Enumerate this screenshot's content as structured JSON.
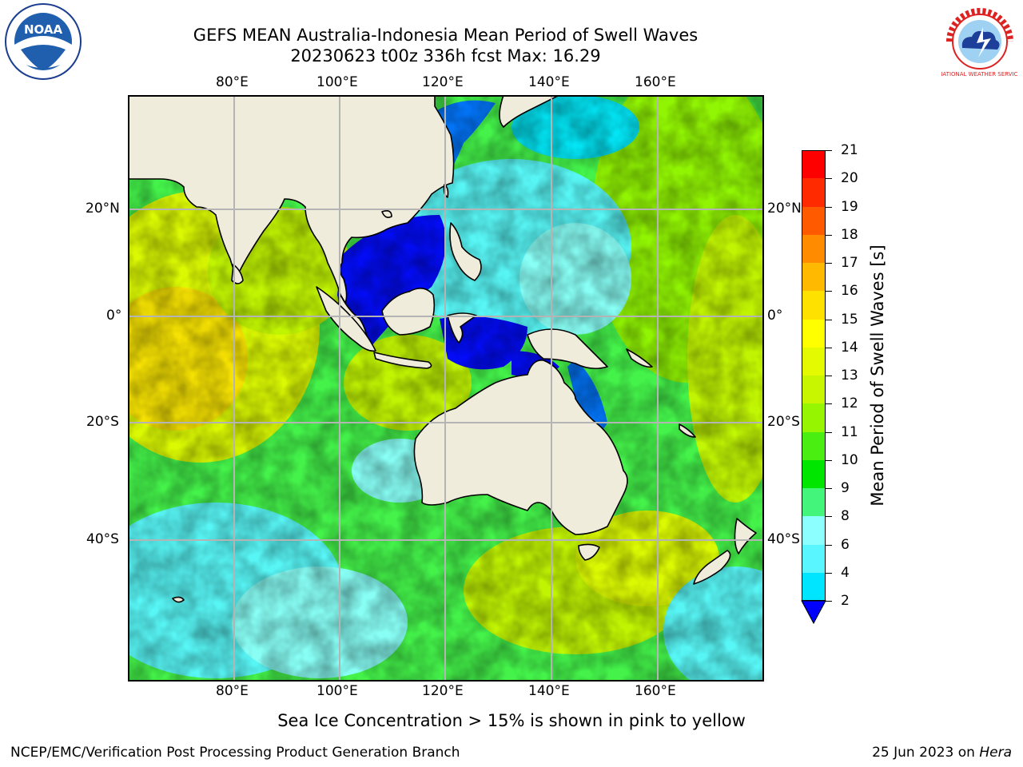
{
  "title": {
    "line1": "GEFS MEAN Australia-Indonesia Mean Period of Swell Waves",
    "line2": "20230623 t00z 336h fcst   Max: 16.29"
  },
  "logos": {
    "left_logo_text": "NOAA",
    "right_logo_text": "NATIONAL WEATHER SERVICE"
  },
  "map": {
    "lon_labels": [
      "80°E",
      "100°E",
      "120°E",
      "140°E",
      "160°E"
    ],
    "lat_labels": [
      "20°N",
      "0°",
      "20°S",
      "40°S"
    ],
    "colors": {
      "land": "#efecdc",
      "ocean_default": "#44f24a"
    }
  },
  "colorbar": {
    "title": "Mean Period of Swell Waves [s]",
    "ticks": [
      "21",
      "20",
      "19",
      "18",
      "17",
      "16",
      "15",
      "14",
      "13",
      "12",
      "11",
      "10",
      "9",
      "8",
      "6",
      "4",
      "2"
    ],
    "colors": [
      "#0000ff",
      "#006dff",
      "#00e5ff",
      "#5af6ff",
      "#8cffff",
      "#43f57a",
      "#00e600",
      "#4bee11",
      "#96f500",
      "#c8f500",
      "#e4fa00",
      "#ffff00",
      "#ffe100",
      "#ffb900",
      "#ff8c00",
      "#ff5a00",
      "#ff2a00",
      "#ff0000"
    ]
  },
  "footer": {
    "note": "Sea Ice Concentration > 15% is shown in pink to yellow",
    "org": "NCEP/EMC/Verification Post Processing Product Generation Branch",
    "date": "25 Jun 2023 on ",
    "machine": "Hera"
  }
}
